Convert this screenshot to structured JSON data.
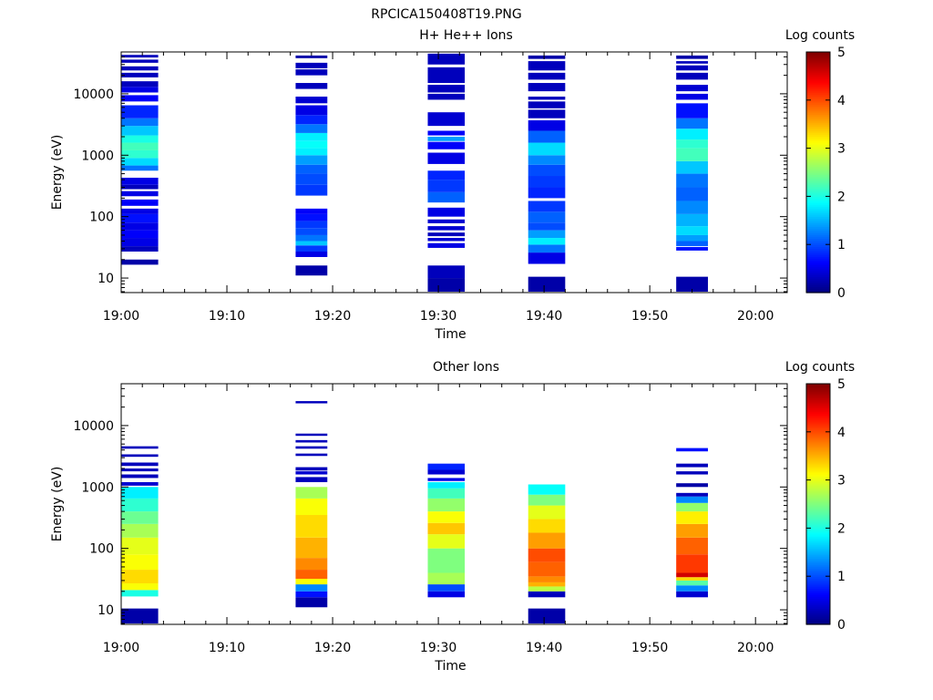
{
  "page_title": "RPCICA150408T19.PNG",
  "colormap": [
    "#00007f",
    "#0000ff",
    "#007fff",
    "#00ffff",
    "#7fff7f",
    "#ffff00",
    "#ff7f00",
    "#ff0000",
    "#7f0000"
  ],
  "chart_data": [
    {
      "type": "heatmap",
      "title": "H+ He++ Ions",
      "xlabel": "Time",
      "ylabel": "Energy (eV)",
      "x_ticks": [
        "19:00",
        "19:10",
        "19:20",
        "19:30",
        "19:40",
        "19:50",
        "20:00"
      ],
      "x_range_minutes": [
        0,
        63
      ],
      "y_scale": "log",
      "y_ticks": [
        "10",
        "100",
        "1000",
        "10000"
      ],
      "y_range": [
        5.8,
        48000
      ],
      "colorbar": {
        "label": "Log counts",
        "range": [
          0,
          5
        ],
        "ticks": [
          "0",
          "1",
          "2",
          "3",
          "4",
          "5"
        ]
      },
      "blocks": [
        {
          "time_start": "19:00",
          "time_end": "19:03.5",
          "bins": [
            [
              16.5,
              20,
              0.2
            ],
            [
              27,
              33,
              0.3
            ],
            [
              33,
              45,
              0.5
            ],
            [
              45,
              60,
              0.6
            ],
            [
              60,
              80,
              0.5
            ],
            [
              80,
              110,
              0.7
            ],
            [
              110,
              135,
              0.5
            ],
            [
              150,
              190,
              0.6
            ],
            [
              215,
              260,
              0.5
            ],
            [
              280,
              330,
              0.3
            ],
            [
              330,
              430,
              0.5
            ],
            [
              560,
              680,
              1.2
            ],
            [
              680,
              900,
              1.7
            ],
            [
              900,
              1200,
              2.1
            ],
            [
              1200,
              1600,
              2.2
            ],
            [
              1600,
              2100,
              2.0
            ],
            [
              2100,
              3000,
              1.6
            ],
            [
              3000,
              4000,
              1.2
            ],
            [
              4000,
              6500,
              0.8
            ],
            [
              7500,
              9500,
              0.6
            ],
            [
              10500,
              13000,
              0.5
            ],
            [
              13000,
              16000,
              0.3
            ],
            [
              18500,
              22000,
              0.3
            ],
            [
              24000,
              28000,
              0.3
            ],
            [
              32000,
              36000,
              0.3
            ],
            [
              39000,
              43000,
              0.3
            ]
          ]
        },
        {
          "time_start": "19:16.5",
          "time_end": "19:19.5",
          "bins": [
            [
              11,
              16,
              0.2
            ],
            [
              22,
              27,
              0.5
            ],
            [
              27,
              34,
              0.9
            ],
            [
              34,
              40,
              1.6
            ],
            [
              40,
              50,
              1.2
            ],
            [
              50,
              65,
              1.0
            ],
            [
              65,
              85,
              0.9
            ],
            [
              85,
              110,
              0.7
            ],
            [
              110,
              135,
              0.6
            ],
            [
              220,
              330,
              0.9
            ],
            [
              330,
              500,
              1.0
            ],
            [
              500,
              700,
              1.1
            ],
            [
              700,
              1000,
              1.4
            ],
            [
              1000,
              1300,
              1.8
            ],
            [
              1300,
              1700,
              1.9
            ],
            [
              1700,
              2300,
              1.8
            ],
            [
              2300,
              3200,
              1.2
            ],
            [
              3200,
              4500,
              0.8
            ],
            [
              4500,
              6500,
              0.5
            ],
            [
              7000,
              9000,
              0.4
            ],
            [
              12000,
              15000,
              0.3
            ],
            [
              20000,
              25000,
              0.3
            ],
            [
              26000,
              32000,
              0.3
            ],
            [
              38000,
              42000,
              0.2
            ]
          ]
        },
        {
          "time_start": "19:29",
          "time_end": "19:32.5",
          "bins": [
            [
              6,
              10,
              0.2
            ],
            [
              10,
              16,
              0.3
            ],
            [
              31,
              37,
              0.5
            ],
            [
              40,
              45,
              0.4
            ],
            [
              48,
              55,
              0.3
            ],
            [
              60,
              70,
              0.4
            ],
            [
              78,
              90,
              0.4
            ],
            [
              100,
              140,
              0.5
            ],
            [
              170,
              250,
              1.1
            ],
            [
              250,
              400,
              0.9
            ],
            [
              400,
              560,
              0.8
            ],
            [
              720,
              1100,
              0.5
            ],
            [
              1250,
              1650,
              0.6
            ],
            [
              1700,
              2000,
              1.4
            ],
            [
              2100,
              2500,
              0.6
            ],
            [
              3000,
              5000,
              0.4
            ],
            [
              8000,
              10000,
              0.3
            ],
            [
              10500,
              14000,
              0.3
            ],
            [
              15000,
              27000,
              0.3
            ],
            [
              30000,
              45000,
              0.3
            ]
          ]
        },
        {
          "time_start": "19:38.5",
          "time_end": "19:42",
          "bins": [
            [
              6,
              10.5,
              0.2
            ],
            [
              17,
              26,
              0.5
            ],
            [
              26,
              35,
              1.2
            ],
            [
              35,
              45,
              1.8
            ],
            [
              45,
              60,
              1.4
            ],
            [
              60,
              80,
              1.0
            ],
            [
              80,
              120,
              1.1
            ],
            [
              120,
              180,
              0.9
            ],
            [
              200,
              300,
              0.8
            ],
            [
              300,
              460,
              0.9
            ],
            [
              460,
              700,
              1.0
            ],
            [
              700,
              1000,
              1.3
            ],
            [
              1000,
              1600,
              1.7
            ],
            [
              1600,
              2500,
              1.1
            ],
            [
              2500,
              3700,
              0.5
            ],
            [
              4000,
              5500,
              0.3
            ],
            [
              5800,
              7500,
              0.3
            ],
            [
              8000,
              9000,
              0.3
            ],
            [
              11000,
              15000,
              0.3
            ],
            [
              17000,
              22000,
              0.3
            ],
            [
              24000,
              34000,
              0.3
            ],
            [
              37000,
              42000,
              0.2
            ]
          ]
        },
        {
          "time_start": "19:52.5",
          "time_end": "19:55.5",
          "bins": [
            [
              6,
              10.5,
              0.2
            ],
            [
              28,
              32,
              0.7
            ],
            [
              33,
              40,
              1.1
            ],
            [
              40,
              50,
              1.4
            ],
            [
              50,
              70,
              1.7
            ],
            [
              70,
              110,
              1.5
            ],
            [
              110,
              180,
              1.3
            ],
            [
              180,
              300,
              1.1
            ],
            [
              300,
              500,
              1.2
            ],
            [
              500,
              800,
              1.6
            ],
            [
              800,
              1300,
              2.2
            ],
            [
              1300,
              1800,
              2.1
            ],
            [
              1800,
              2700,
              1.8
            ],
            [
              2700,
              4000,
              1.2
            ],
            [
              4000,
              7000,
              0.7
            ],
            [
              8000,
              10000,
              0.5
            ],
            [
              11000,
              14000,
              0.4
            ],
            [
              17000,
              22000,
              0.3
            ],
            [
              24000,
              29000,
              0.3
            ],
            [
              31000,
              34000,
              0.3
            ],
            [
              37000,
              42000,
              0.2
            ]
          ]
        }
      ]
    },
    {
      "type": "heatmap",
      "title": "Other Ions",
      "xlabel": "Time",
      "ylabel": "Energy (eV)",
      "x_ticks": [
        "19:00",
        "19:10",
        "19:20",
        "19:30",
        "19:40",
        "19:50",
        "20:00"
      ],
      "x_range_minutes": [
        0,
        63
      ],
      "y_scale": "log",
      "y_ticks": [
        "10",
        "100",
        "1000",
        "10000"
      ],
      "y_range": [
        5.8,
        48000
      ],
      "colorbar": {
        "label": "Log counts",
        "range": [
          0,
          5
        ],
        "ticks": [
          "0",
          "1",
          "2",
          "3",
          "4",
          "5"
        ]
      },
      "blocks": [
        {
          "time_start": "19:00",
          "time_end": "19:03.5",
          "bins": [
            [
              6,
              10.5,
              0.2
            ],
            [
              16.5,
              21,
              2.0
            ],
            [
              21,
              27,
              3.1
            ],
            [
              27,
              45,
              3.3
            ],
            [
              45,
              80,
              3.1
            ],
            [
              80,
              150,
              3.0
            ],
            [
              150,
              250,
              2.7
            ],
            [
              250,
              400,
              2.4
            ],
            [
              400,
              650,
              2.1
            ],
            [
              650,
              1000,
              1.8
            ],
            [
              1050,
              1200,
              0.4
            ],
            [
              1400,
              1600,
              0.3
            ],
            [
              1800,
              2000,
              0.3
            ],
            [
              2200,
              2500,
              0.3
            ],
            [
              3100,
              3400,
              0.3
            ],
            [
              4200,
              4600,
              0.3
            ]
          ]
        },
        {
          "time_start": "19:16.5",
          "time_end": "19:19.5",
          "bins": [
            [
              11,
              16,
              0.2
            ],
            [
              16,
              20,
              0.7
            ],
            [
              20,
              26,
              1.3
            ],
            [
              26,
              32,
              3.1
            ],
            [
              32,
              45,
              3.9
            ],
            [
              45,
              70,
              3.7
            ],
            [
              70,
              150,
              3.5
            ],
            [
              150,
              350,
              3.3
            ],
            [
              350,
              650,
              3.1
            ],
            [
              650,
              1000,
              2.7
            ],
            [
              1200,
              1450,
              0.3
            ],
            [
              1600,
              1800,
              0.4
            ],
            [
              1850,
              2100,
              0.3
            ],
            [
              3200,
              3500,
              0.3
            ],
            [
              4200,
              4600,
              0.3
            ],
            [
              5300,
              5800,
              0.3
            ],
            [
              6800,
              7400,
              0.3
            ],
            [
              23000,
              25000,
              0.3
            ]
          ]
        },
        {
          "time_start": "19:29",
          "time_end": "19:32.5",
          "bins": [
            [
              16,
              20,
              0.5
            ],
            [
              20,
              26,
              1.0
            ],
            [
              26,
              40,
              2.7
            ],
            [
              40,
              100,
              2.5
            ],
            [
              100,
              170,
              3.0
            ],
            [
              170,
              260,
              3.4
            ],
            [
              260,
              400,
              3.1
            ],
            [
              400,
              650,
              2.6
            ],
            [
              650,
              950,
              2.2
            ],
            [
              950,
              1200,
              1.8
            ],
            [
              1250,
              1400,
              0.5
            ],
            [
              1600,
              1900,
              0.4
            ],
            [
              1900,
              2400,
              0.8
            ]
          ]
        },
        {
          "time_start": "19:38.5",
          "time_end": "19:42",
          "bins": [
            [
              6,
              10.5,
              0.2
            ],
            [
              16,
              20,
              0.3
            ],
            [
              20,
              24,
              2.8
            ],
            [
              24,
              28,
              3.5
            ],
            [
              28,
              35,
              3.7
            ],
            [
              35,
              60,
              3.9
            ],
            [
              60,
              100,
              4.0
            ],
            [
              100,
              180,
              3.6
            ],
            [
              180,
              300,
              3.3
            ],
            [
              300,
              500,
              3.0
            ],
            [
              500,
              750,
              2.5
            ],
            [
              750,
              1100,
              1.9
            ]
          ]
        },
        {
          "time_start": "19:52.5",
          "time_end": "19:55.5",
          "bins": [
            [
              16,
              20,
              0.4
            ],
            [
              20,
              25,
              1.3
            ],
            [
              25,
              30,
              2.3
            ],
            [
              30,
              34,
              3.3
            ],
            [
              34,
              40,
              4.6
            ],
            [
              40,
              80,
              4.1
            ],
            [
              80,
              150,
              3.9
            ],
            [
              150,
              250,
              3.6
            ],
            [
              250,
              400,
              3.2
            ],
            [
              400,
              550,
              2.6
            ],
            [
              550,
              700,
              1.3
            ],
            [
              700,
              800,
              0.3
            ],
            [
              1000,
              1150,
              0.2
            ],
            [
              1600,
              1800,
              0.3
            ],
            [
              2100,
              2400,
              0.3
            ],
            [
              3800,
              4300,
              0.7
            ]
          ]
        }
      ]
    }
  ]
}
